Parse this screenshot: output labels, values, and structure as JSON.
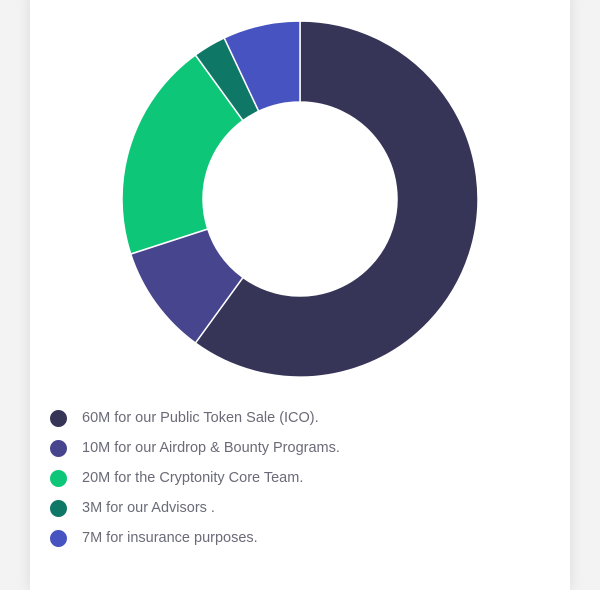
{
  "chart_data": {
    "type": "pie",
    "variant": "donut",
    "categories": [
      "60M for our Public Token Sale (ICO).",
      "10M for our Airdrop & Bounty Programs.",
      "20M for the Cryptonity Core Team.",
      "3M for our Advisors .",
      "7M for insurance purposes."
    ],
    "values": [
      60,
      10,
      20,
      3,
      7
    ],
    "colors": [
      "#363558",
      "#48458f",
      "#0ec677",
      "#0f7766",
      "#4653c0"
    ],
    "legend_position": "bottom-left",
    "title": "",
    "xlabel": "",
    "ylabel": ""
  }
}
